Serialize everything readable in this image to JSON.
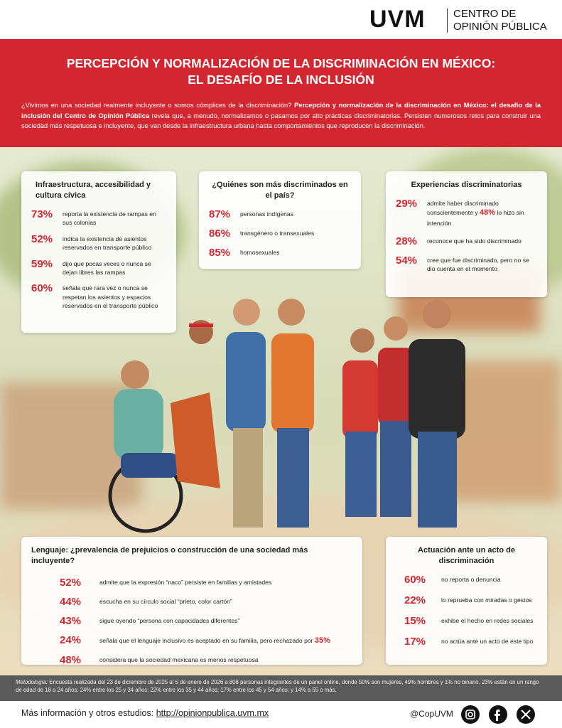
{
  "header": {
    "logo": "UVM",
    "unit_line1": "CENTRO DE",
    "unit_line2": "OPINIÓN PÚBLICA"
  },
  "banner": {
    "title_line1": "PERCEPCIÓN Y NORMALIZACIÓN DE LA DISCRIMINACIÓN EN MÉXICO:",
    "title_line2": "EL DESAFÍO DE LA INCLUSIÓN",
    "intro": [
      "¿Vivimos en una sociedad realmente incluyente o somos cómplices de la discriminación? ",
      "Percepción y normalización de la discriminación en México: el desafío de la inclusión del Centro de Opinión Pública",
      " revela que, a menudo, normalizamos o pasamos por alto prácticas discriminatorias. Persisten numerosos retos para construir una sociedad más respetuosa e incluyente, que van desde la infraestructura urbana hasta comportamientos que reproducen la discriminación."
    ]
  },
  "panels": [
    {
      "title": "Infraestructura, accesibilidad y cultura cívica",
      "items": [
        {
          "pct": "73%",
          "text": "reporta la existencia de rampas en sus colonias"
        },
        {
          "pct": "52%",
          "text": "indica la existencia de asientos reservados en transporte público"
        },
        {
          "pct": "59%",
          "text": "dijo que pocas veces o nunca se dejan libres las rampas"
        },
        {
          "pct": "60%",
          "text": "señala que rara vez o nunca se respetan los asientos y espacios reservados en el transporte público"
        }
      ]
    },
    {
      "title": "¿Quiénes son más discriminados en el país?",
      "items": [
        {
          "pct": "87%",
          "text": "personas indígenas"
        },
        {
          "pct": "86%",
          "text": "transgénero o transexuales"
        },
        {
          "pct": "85%",
          "text": "homosexuales"
        }
      ]
    },
    {
      "title": "Experiencias discriminatorias",
      "items": [
        {
          "pct": "29%",
          "text": "admite haber discriminado conscientemente y ",
          "pct2": "48%",
          "text2": " lo hizo sin intención"
        },
        {
          "pct": "28%",
          "text": "reconoce que ha sido discriminado"
        },
        {
          "pct": "54%",
          "text": "cree que fue discriminado, pero no se dio cuenta en el momento"
        }
      ]
    },
    {
      "title": "Lenguaje: ¿prevalencia de prejuicios o construcción de una sociedad más incluyente?",
      "items": [
        {
          "pct": "52%",
          "text": "admite que la expresión “naco” persiste en familias y amistades"
        },
        {
          "pct": "44%",
          "text": "escucha en su círculo social “prieto, color cartón”"
        },
        {
          "pct": "43%",
          "text": "sigue oyendo “persona con capacidades diferentes”"
        },
        {
          "pct": "24%",
          "text": "señala que el lenguaje inclusivo es aceptado en su familia, pero rechazado por ",
          "pct2": "35%"
        },
        {
          "pct": "48%",
          "text": "considera que la sociedad mexicana es menos respetuosa"
        }
      ]
    },
    {
      "title": "Actuación ante un acto de discriminación",
      "items": [
        {
          "pct": "60%",
          "text": "no reporta o denuncia"
        },
        {
          "pct": "22%",
          "text": "lo reprueba con miradas o gestos"
        },
        {
          "pct": "15%",
          "text": "exhibe el hecho en redes sociales"
        },
        {
          "pct": "17%",
          "text": "no actúa ante un acto de este tipo"
        }
      ]
    }
  ],
  "methodology": {
    "label": "Metodología:",
    "text": " Encuesta realizada del 23 de diciembre de 2025 al 5 de enero de 2026 a 808 personas integrantes de un panel online, donde 50% son mujeres, 49% hombres y 1% no binario. 23% están en un rango de edad de 18 a 24 años; 24% entre los 25 y 34 años; 22% entre los 35 y 44 años; 17% entre los 45 y 54 años; y 14% a 55 o más."
  },
  "footer": {
    "more": "Más información y otros estudios:",
    "link": "http://opinionpublica.uvm.mx",
    "handle": "@CopUVM"
  }
}
